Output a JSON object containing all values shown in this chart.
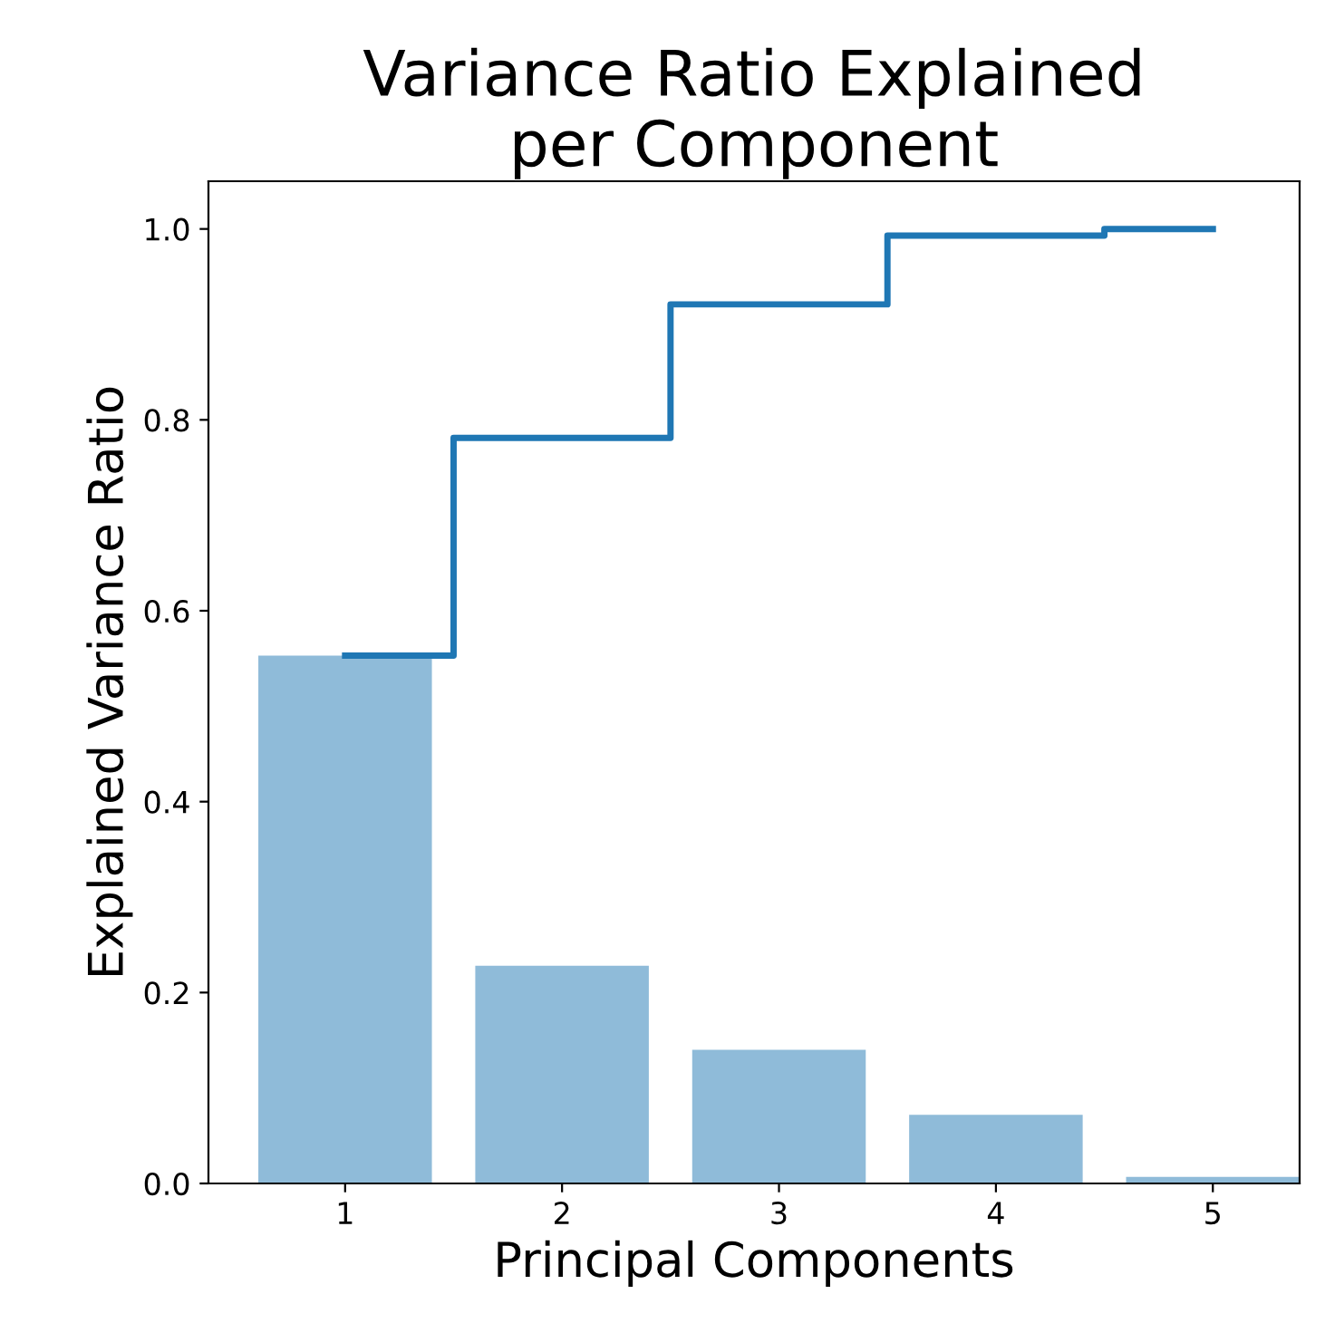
{
  "chart_data": {
    "type": "bar",
    "title": "Variance Ratio Explained\nper Component",
    "xlabel": "Principal Components",
    "ylabel": "Explained Variance Ratio",
    "x": [
      1,
      2,
      3,
      4,
      5
    ],
    "series": [
      {
        "color": "#8fbbd9",
        "values": [
          0.553,
          0.228,
          0.14,
          0.072,
          0.007
        ]
      },
      {
        "type": "step",
        "color": "#1f77b4",
        "values": [
          0.553,
          0.781,
          0.921,
          0.993,
          1.0
        ]
      }
    ],
    "xlim": [
      0.37,
      5.4
    ],
    "xticks": [
      1,
      2,
      3,
      4,
      5
    ],
    "ylim": [
      0,
      1.05
    ],
    "yticks": [
      {
        "value": 0,
        "label": "0.0"
      },
      0.2,
      0.4,
      0.6,
      0.8,
      {
        "value": 1,
        "label": "1.0"
      }
    ],
    "grid": false,
    "legend": false
  }
}
